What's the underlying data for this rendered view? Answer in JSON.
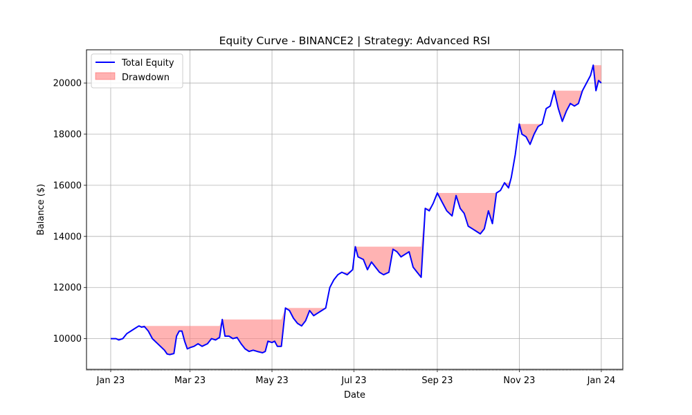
{
  "chart_data": {
    "type": "line",
    "title": "Equity Curve - BINANCE2 | Strategy: Advanced RSI",
    "xlabel": "Date",
    "ylabel": "Balance ($)",
    "xlim": [
      "2022-12-14",
      "2024-01-17"
    ],
    "ylim": [
      8800,
      21300
    ],
    "yticks": [
      10000,
      12000,
      14000,
      16000,
      18000,
      20000
    ],
    "xticks": [
      {
        "date": "2023-01-01",
        "label": "Jan 23"
      },
      {
        "date": "2023-03-01",
        "label": "Mar 23"
      },
      {
        "date": "2023-05-01",
        "label": "May 23"
      },
      {
        "date": "2023-07-01",
        "label": "Jul 23"
      },
      {
        "date": "2023-09-01",
        "label": "Sep 23"
      },
      {
        "date": "2023-11-01",
        "label": "Nov 23"
      },
      {
        "date": "2024-01-01",
        "label": "Jan 24"
      }
    ],
    "grid": true,
    "legend_position": "top-left",
    "colors": {
      "equity": "#0000ff",
      "drawdown": "#ff8080"
    },
    "series": [
      {
        "name": "Total Equity",
        "points": [
          [
            "2023-01-01",
            10000
          ],
          [
            "2023-01-05",
            10000
          ],
          [
            "2023-01-07",
            9950
          ],
          [
            "2023-01-10",
            10000
          ],
          [
            "2023-01-13",
            10200
          ],
          [
            "2023-01-16",
            10300
          ],
          [
            "2023-01-19",
            10400
          ],
          [
            "2023-01-22",
            10500
          ],
          [
            "2023-01-24",
            10450
          ],
          [
            "2023-01-26",
            10480
          ],
          [
            "2023-01-29",
            10300
          ],
          [
            "2023-02-01",
            10000
          ],
          [
            "2023-02-04",
            9850
          ],
          [
            "2023-02-07",
            9700
          ],
          [
            "2023-02-10",
            9550
          ],
          [
            "2023-02-12",
            9400
          ],
          [
            "2023-02-14",
            9380
          ],
          [
            "2023-02-17",
            9420
          ],
          [
            "2023-02-19",
            10100
          ],
          [
            "2023-02-21",
            10300
          ],
          [
            "2023-02-23",
            10300
          ],
          [
            "2023-02-25",
            9900
          ],
          [
            "2023-02-27",
            9600
          ],
          [
            "2023-03-01",
            9650
          ],
          [
            "2023-03-04",
            9700
          ],
          [
            "2023-03-07",
            9800
          ],
          [
            "2023-03-10",
            9700
          ],
          [
            "2023-03-14",
            9800
          ],
          [
            "2023-03-17",
            10000
          ],
          [
            "2023-03-20",
            9950
          ],
          [
            "2023-03-23",
            10050
          ],
          [
            "2023-03-25",
            10750
          ],
          [
            "2023-03-27",
            10100
          ],
          [
            "2023-03-30",
            10100
          ],
          [
            "2023-04-02",
            10000
          ],
          [
            "2023-04-05",
            10050
          ],
          [
            "2023-04-08",
            9800
          ],
          [
            "2023-04-11",
            9600
          ],
          [
            "2023-04-14",
            9500
          ],
          [
            "2023-04-17",
            9550
          ],
          [
            "2023-04-20",
            9500
          ],
          [
            "2023-04-24",
            9450
          ],
          [
            "2023-04-26",
            9500
          ],
          [
            "2023-04-28",
            9900
          ],
          [
            "2023-05-01",
            9850
          ],
          [
            "2023-05-03",
            9900
          ],
          [
            "2023-05-05",
            9700
          ],
          [
            "2023-05-08",
            9700
          ],
          [
            "2023-05-11",
            11200
          ],
          [
            "2023-05-14",
            11100
          ],
          [
            "2023-05-17",
            10800
          ],
          [
            "2023-05-20",
            10600
          ],
          [
            "2023-05-23",
            10500
          ],
          [
            "2023-05-26",
            10700
          ],
          [
            "2023-05-29",
            11100
          ],
          [
            "2023-06-01",
            10900
          ],
          [
            "2023-06-04",
            11000
          ],
          [
            "2023-06-07",
            11100
          ],
          [
            "2023-06-10",
            11200
          ],
          [
            "2023-06-13",
            12000
          ],
          [
            "2023-06-16",
            12300
          ],
          [
            "2023-06-19",
            12500
          ],
          [
            "2023-06-22",
            12600
          ],
          [
            "2023-06-26",
            12500
          ],
          [
            "2023-06-30",
            12700
          ],
          [
            "2023-07-02",
            13600
          ],
          [
            "2023-07-04",
            13200
          ],
          [
            "2023-07-08",
            13100
          ],
          [
            "2023-07-11",
            12700
          ],
          [
            "2023-07-14",
            13000
          ],
          [
            "2023-07-17",
            12800
          ],
          [
            "2023-07-20",
            12600
          ],
          [
            "2023-07-23",
            12500
          ],
          [
            "2023-07-27",
            12600
          ],
          [
            "2023-07-30",
            13500
          ],
          [
            "2023-08-02",
            13400
          ],
          [
            "2023-08-05",
            13200
          ],
          [
            "2023-08-08",
            13300
          ],
          [
            "2023-08-11",
            13400
          ],
          [
            "2023-08-14",
            12800
          ],
          [
            "2023-08-17",
            12600
          ],
          [
            "2023-08-20",
            12400
          ],
          [
            "2023-08-23",
            15100
          ],
          [
            "2023-08-26",
            15000
          ],
          [
            "2023-08-29",
            15300
          ],
          [
            "2023-09-01",
            15700
          ],
          [
            "2023-09-04",
            15400
          ],
          [
            "2023-09-08",
            15000
          ],
          [
            "2023-09-12",
            14800
          ],
          [
            "2023-09-15",
            15600
          ],
          [
            "2023-09-18",
            15100
          ],
          [
            "2023-09-21",
            14900
          ],
          [
            "2023-09-24",
            14400
          ],
          [
            "2023-09-27",
            14300
          ],
          [
            "2023-09-30",
            14200
          ],
          [
            "2023-10-03",
            14100
          ],
          [
            "2023-10-06",
            14300
          ],
          [
            "2023-10-09",
            15000
          ],
          [
            "2023-10-12",
            14500
          ],
          [
            "2023-10-15",
            15700
          ],
          [
            "2023-10-18",
            15800
          ],
          [
            "2023-10-21",
            16100
          ],
          [
            "2023-10-24",
            15900
          ],
          [
            "2023-10-26",
            16300
          ],
          [
            "2023-10-29",
            17200
          ],
          [
            "2023-11-01",
            18400
          ],
          [
            "2023-11-03",
            18000
          ],
          [
            "2023-11-06",
            17900
          ],
          [
            "2023-11-09",
            17600
          ],
          [
            "2023-11-12",
            18000
          ],
          [
            "2023-11-15",
            18300
          ],
          [
            "2023-11-18",
            18400
          ],
          [
            "2023-11-21",
            19000
          ],
          [
            "2023-11-24",
            19100
          ],
          [
            "2023-11-27",
            19700
          ],
          [
            "2023-11-30",
            19000
          ],
          [
            "2023-12-03",
            18500
          ],
          [
            "2023-12-06",
            18900
          ],
          [
            "2023-12-09",
            19200
          ],
          [
            "2023-12-12",
            19100
          ],
          [
            "2023-12-15",
            19200
          ],
          [
            "2023-12-18",
            19700
          ],
          [
            "2023-12-21",
            20000
          ],
          [
            "2023-12-24",
            20300
          ],
          [
            "2023-12-26",
            20700
          ],
          [
            "2023-12-28",
            19700
          ],
          [
            "2023-12-30",
            20100
          ],
          [
            "2024-01-01",
            20000
          ]
        ]
      },
      {
        "name": "Drawdown"
      }
    ]
  }
}
